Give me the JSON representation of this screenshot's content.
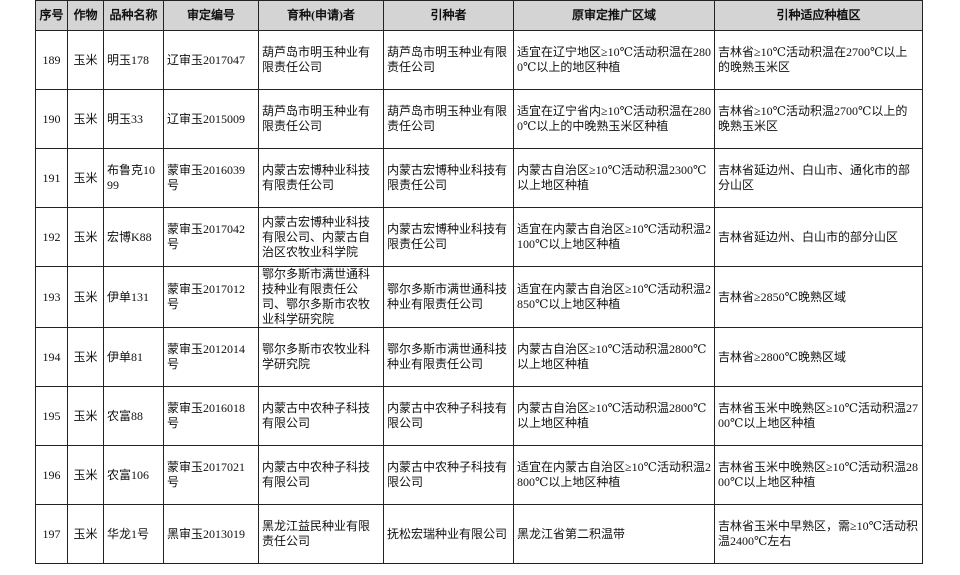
{
  "table": {
    "headers": [
      "序号",
      "作物",
      "品种名称",
      "审定编号",
      "育种(申请)者",
      "引种者",
      "原审定推广区域",
      "引种适应种植区"
    ],
    "rows": [
      [
        "189",
        "玉米",
        "明玉178",
        "辽审玉2017047",
        "葫芦岛市明玉种业有限责任公司",
        "葫芦岛市明玉种业有限责任公司",
        "适宜在辽宁地区≥10℃活动积温在2800℃以上的地区种植",
        "吉林省≥10℃活动积温在2700℃以上的晚熟玉米区"
      ],
      [
        "190",
        "玉米",
        "明玉33",
        "辽审玉2015009",
        "葫芦岛市明玉种业有限责任公司",
        "葫芦岛市明玉种业有限责任公司",
        "适宜在辽宁省内≥10℃活动积温在2800℃以上的中晚熟玉米区种植",
        "吉林省≥10℃活动积温2700℃以上的晚熟玉米区"
      ],
      [
        "191",
        "玉米",
        "布鲁克1099",
        "蒙审玉2016039号",
        "内蒙古宏博种业科技有限责任公司",
        "内蒙古宏博种业科技有限责任公司",
        "内蒙古自治区≥10℃活动积温2300℃以上地区种植",
        "吉林省延边州、白山市、通化市的部分山区"
      ],
      [
        "192",
        "玉米",
        "宏博K88",
        "蒙审玉2017042号",
        "内蒙古宏博种业科技有限公司、内蒙古自治区农牧业科学院",
        "内蒙古宏博种业科技有限责任公司",
        "适宜在内蒙古自治区≥10℃活动积温2100℃以上地区种植",
        "吉林省延边州、白山市的部分山区"
      ],
      [
        "193",
        "玉米",
        "伊单131",
        "蒙审玉2017012号",
        "鄂尔多斯市满世通科技种业有限责任公司、鄂尔多斯市农牧业科学研究院",
        "鄂尔多斯市满世通科技种业有限责任公司",
        "适宜在内蒙古自治区≥10℃活动积温2850℃以上地区种植",
        "吉林省≥2850℃晚熟区域"
      ],
      [
        "194",
        "玉米",
        "伊单81",
        "蒙审玉2012014号",
        "鄂尔多斯市农牧业科学研究院",
        "鄂尔多斯市满世通科技种业有限责任公司",
        "内蒙古自治区≥10℃活动积温2800℃以上地区种植",
        "吉林省≥2800℃晚熟区域"
      ],
      [
        "195",
        "玉米",
        "农富88",
        "蒙审玉2016018号",
        "内蒙古中农种子科技有限公司",
        "内蒙古中农种子科技有限公司",
        "内蒙古自治区≥10℃活动积温2800℃以上地区种植",
        "吉林省玉米中晚熟区≥10℃活动积温2700℃以上地区种植"
      ],
      [
        "196",
        "玉米",
        "农富106",
        "蒙审玉2017021号",
        "内蒙古中农种子科技有限公司",
        "内蒙古中农种子科技有限公司",
        "适宜在内蒙古自治区≥10℃活动积温2800℃以上地区种植",
        "吉林省玉米中晚熟区≥10℃活动积温2800℃以上地区种植"
      ],
      [
        "197",
        "玉米",
        "华龙1号",
        "黑审玉2013019",
        "黑龙江益民种业有限责任公司",
        "抚松宏瑞种业有限公司",
        "黑龙江省第二积温带",
        "吉林省玉米中早熟区，需≥10℃活动积温2400℃左右"
      ]
    ]
  }
}
